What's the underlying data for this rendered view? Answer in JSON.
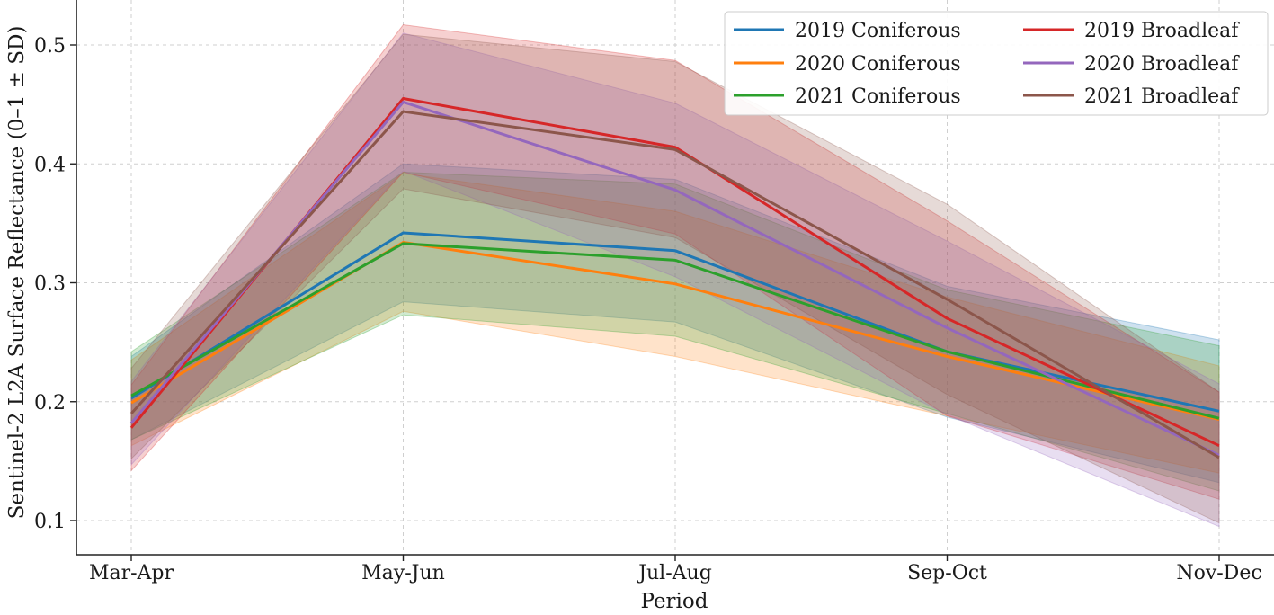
{
  "chart_data": {
    "type": "line",
    "title": "",
    "xlabel": "Period",
    "ylabel": "Sentinel-2 L2A Surface Reflectance (0–1 ± SD)",
    "categories": [
      "Mar-Apr",
      "May-Jun",
      "Jul-Aug",
      "Sep-Oct",
      "Nov-Dec"
    ],
    "ylim": [
      0.075,
      0.54
    ],
    "yticks": [
      0.1,
      0.2,
      0.3,
      0.4,
      0.5
    ],
    "ytick_labels": [
      "0.1",
      "0.2",
      "0.3",
      "0.4",
      "0.5"
    ],
    "grid": true,
    "legend_position": "top-right",
    "series": [
      {
        "name": "2019 Coniferous",
        "color": "#1f77b4",
        "values": [
          0.203,
          0.342,
          0.327,
          0.242,
          0.192
        ],
        "sd": [
          0.035,
          0.058,
          0.06,
          0.055,
          0.06
        ]
      },
      {
        "name": "2020 Coniferous",
        "color": "#ff7f0e",
        "values": [
          0.199,
          0.334,
          0.299,
          0.238,
          0.185
        ],
        "sd": [
          0.036,
          0.058,
          0.061,
          0.05,
          0.045
        ]
      },
      {
        "name": "2021 Coniferous",
        "color": "#2ca02c",
        "values": [
          0.205,
          0.333,
          0.319,
          0.242,
          0.186
        ],
        "sd": [
          0.037,
          0.06,
          0.064,
          0.052,
          0.061
        ]
      },
      {
        "name": "2019 Broadleaf",
        "color": "#d62728",
        "values": [
          0.178,
          0.455,
          0.414,
          0.27,
          0.163
        ],
        "sd": [
          0.036,
          0.062,
          0.073,
          0.082,
          0.045
        ]
      },
      {
        "name": "2020 Broadleaf",
        "color": "#9467bd",
        "values": [
          0.182,
          0.452,
          0.378,
          0.262,
          0.155
        ],
        "sd": [
          0.035,
          0.058,
          0.073,
          0.073,
          0.06
        ]
      },
      {
        "name": "2021 Broadleaf",
        "color": "#8c564b",
        "values": [
          0.19,
          0.444,
          0.412,
          0.286,
          0.153
        ],
        "sd": [
          0.038,
          0.065,
          0.074,
          0.08,
          0.055
        ]
      }
    ]
  }
}
